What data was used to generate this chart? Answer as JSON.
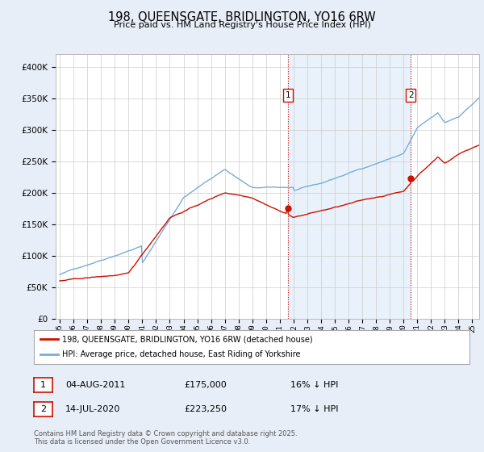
{
  "title": "198, QUEENSGATE, BRIDLINGTON, YO16 6RW",
  "subtitle": "Price paid vs. HM Land Registry's House Price Index (HPI)",
  "background_color": "#e8eef8",
  "plot_bg_color": "#ffffff",
  "hpi_color": "#7aacd6",
  "hpi_fill_color": "#d0e4f4",
  "price_color": "#cc1100",
  "vline_color": "#cc1100",
  "marker1_year": 2011.6,
  "marker2_year": 2020.55,
  "legend_line1": "198, QUEENSGATE, BRIDLINGTON, YO16 6RW (detached house)",
  "legend_line2": "HPI: Average price, detached house, East Riding of Yorkshire",
  "footer1": "Contains HM Land Registry data © Crown copyright and database right 2025.",
  "footer2": "This data is licensed under the Open Government Licence v3.0.",
  "table_row1_date": "04-AUG-2011",
  "table_row1_price": "£175,000",
  "table_row1_hpi": "16% ↓ HPI",
  "table_row2_date": "14-JUL-2020",
  "table_row2_price": "£223,250",
  "table_row2_hpi": "17% ↓ HPI",
  "ylim_min": 0,
  "ylim_max": 420000,
  "start_year": 1995,
  "end_year": 2025.5
}
